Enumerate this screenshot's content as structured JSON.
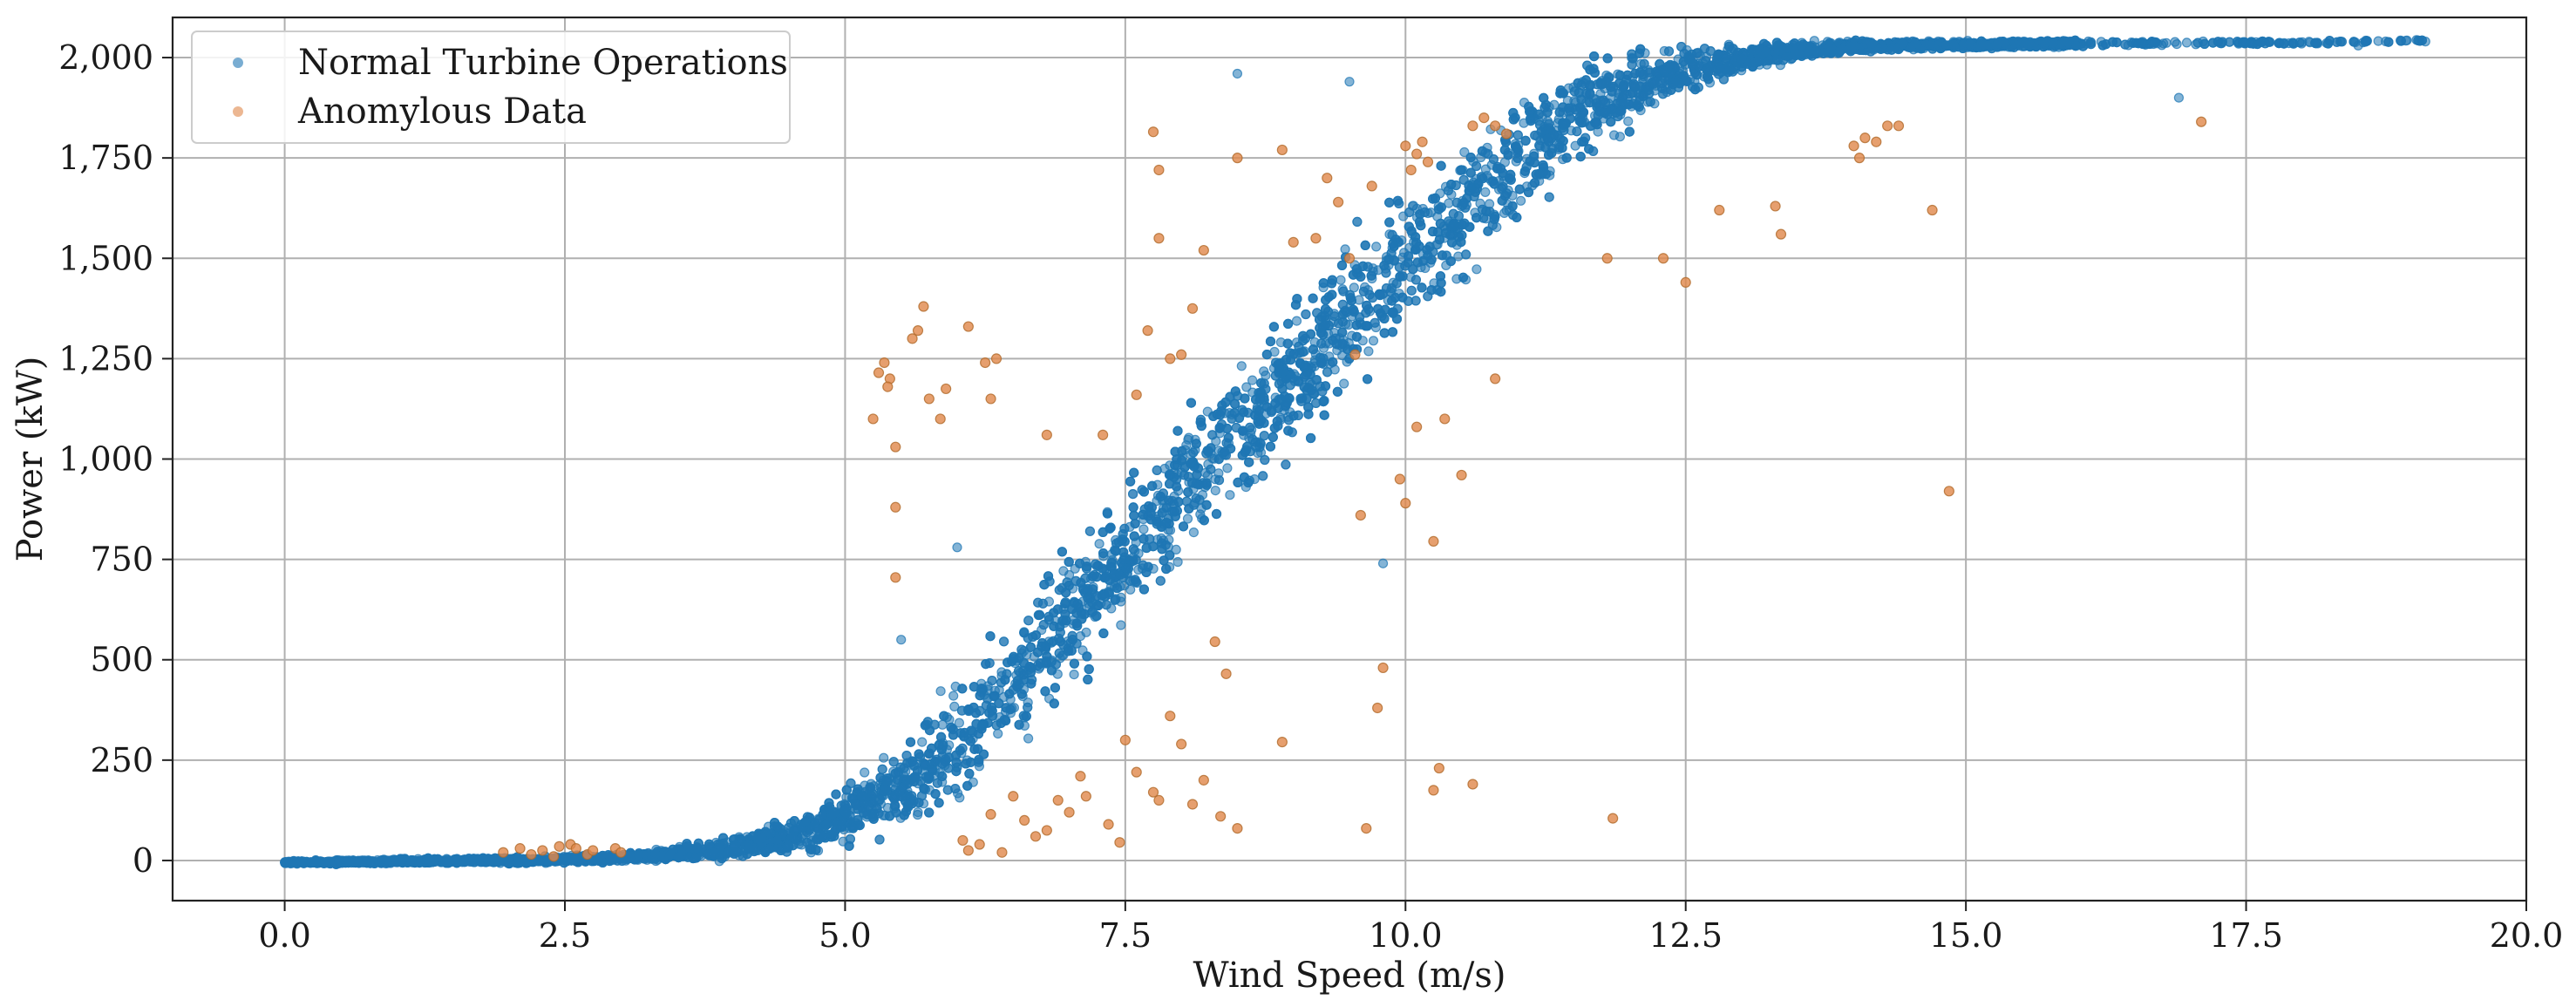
{
  "chart_data": {
    "type": "scatter",
    "title": "",
    "xlabel": "Wind Speed (m/s)",
    "ylabel": "Power (kW)",
    "xlim": [
      -1.0,
      20.0
    ],
    "ylim": [
      -100,
      2100
    ],
    "xticks": [
      0.0,
      2.5,
      5.0,
      7.5,
      10.0,
      12.5,
      15.0,
      17.5,
      20.0
    ],
    "xtick_labels": [
      "0.0",
      "2.5",
      "5.0",
      "7.5",
      "10.0",
      "12.5",
      "15.0",
      "17.5",
      "20.0"
    ],
    "yticks": [
      0,
      250,
      500,
      750,
      1000,
      1250,
      1500,
      1750,
      2000
    ],
    "ytick_labels": [
      "0",
      "250",
      "500",
      "750",
      "1,000",
      "1,250",
      "1,500",
      "1,750",
      "2,000"
    ],
    "grid": true,
    "legend_position": "top-left",
    "series": [
      {
        "name": "Normal Turbine Operations",
        "color": "#1f77b4",
        "band": {
          "x": [
            0.0,
            1.0,
            2.0,
            3.0,
            3.5,
            4.0,
            4.5,
            5.0,
            5.5,
            6.0,
            6.5,
            7.0,
            7.5,
            8.0,
            8.5,
            9.0,
            9.5,
            10.0,
            10.5,
            11.0,
            11.5,
            12.0,
            12.5,
            13.0,
            13.5,
            14.0,
            15.0,
            16.0,
            17.0,
            18.0,
            19.1
          ],
          "low": [
            -10,
            -10,
            -10,
            -8,
            -5,
            -5,
            0,
            10,
            40,
            100,
            230,
            380,
            540,
            700,
            850,
            980,
            1110,
            1250,
            1400,
            1560,
            1700,
            1800,
            1890,
            1950,
            1990,
            2010,
            2020,
            2025,
            2030,
            2030,
            2040
          ],
          "high": [
            0,
            5,
            10,
            20,
            40,
            70,
            120,
            200,
            330,
            480,
            650,
            820,
            980,
            1140,
            1290,
            1440,
            1580,
            1720,
            1840,
            1940,
            2020,
            2045,
            2045,
            2045,
            2045,
            2045,
            2045,
            2045,
            2045,
            2045,
            2045
          ]
        },
        "outliers": [
          {
            "x": 8.5,
            "y": 1960
          },
          {
            "x": 9.5,
            "y": 1940
          },
          {
            "x": 16.9,
            "y": 1900
          },
          {
            "x": 18.5,
            "y": 2030
          },
          {
            "x": 19.1,
            "y": 2040
          },
          {
            "x": 9.8,
            "y": 740
          },
          {
            "x": 5.5,
            "y": 550
          },
          {
            "x": 6.0,
            "y": 780
          }
        ]
      },
      {
        "name": "Anomylous Data",
        "color": "#e0874a",
        "points": [
          {
            "x": 5.3,
            "y": 1215
          },
          {
            "x": 5.35,
            "y": 1240
          },
          {
            "x": 5.4,
            "y": 1200
          },
          {
            "x": 5.38,
            "y": 1180
          },
          {
            "x": 5.6,
            "y": 1300
          },
          {
            "x": 5.65,
            "y": 1320
          },
          {
            "x": 5.7,
            "y": 1380
          },
          {
            "x": 5.75,
            "y": 1150
          },
          {
            "x": 5.9,
            "y": 1175
          },
          {
            "x": 6.1,
            "y": 1330
          },
          {
            "x": 6.25,
            "y": 1240
          },
          {
            "x": 6.35,
            "y": 1250
          },
          {
            "x": 5.25,
            "y": 1100
          },
          {
            "x": 5.45,
            "y": 1030
          },
          {
            "x": 5.45,
            "y": 880
          },
          {
            "x": 5.45,
            "y": 705
          },
          {
            "x": 6.3,
            "y": 1150
          },
          {
            "x": 5.85,
            "y": 1100
          },
          {
            "x": 7.75,
            "y": 1815
          },
          {
            "x": 7.8,
            "y": 1720
          },
          {
            "x": 8.5,
            "y": 1750
          },
          {
            "x": 8.9,
            "y": 1770
          },
          {
            "x": 9.3,
            "y": 1700
          },
          {
            "x": 9.4,
            "y": 1640
          },
          {
            "x": 8.1,
            "y": 1375
          },
          {
            "x": 8.2,
            "y": 1520
          },
          {
            "x": 8.0,
            "y": 1260
          },
          {
            "x": 7.7,
            "y": 1320
          },
          {
            "x": 7.6,
            "y": 1160
          },
          {
            "x": 7.3,
            "y": 1060
          },
          {
            "x": 6.8,
            "y": 1060
          },
          {
            "x": 7.9,
            "y": 1250
          },
          {
            "x": 7.8,
            "y": 1550
          },
          {
            "x": 9.2,
            "y": 1550
          },
          {
            "x": 9.0,
            "y": 1540
          },
          {
            "x": 9.7,
            "y": 1680
          },
          {
            "x": 10.0,
            "y": 1780
          },
          {
            "x": 10.1,
            "y": 1760
          },
          {
            "x": 10.2,
            "y": 1740
          },
          {
            "x": 10.05,
            "y": 1720
          },
          {
            "x": 10.15,
            "y": 1790
          },
          {
            "x": 10.6,
            "y": 1830
          },
          {
            "x": 10.8,
            "y": 1830
          },
          {
            "x": 10.7,
            "y": 1850
          },
          {
            "x": 10.9,
            "y": 1810
          },
          {
            "x": 9.5,
            "y": 1500
          },
          {
            "x": 9.55,
            "y": 1260
          },
          {
            "x": 10.1,
            "y": 1080
          },
          {
            "x": 10.35,
            "y": 1100
          },
          {
            "x": 9.95,
            "y": 950
          },
          {
            "x": 10.0,
            "y": 890
          },
          {
            "x": 10.5,
            "y": 960
          },
          {
            "x": 9.6,
            "y": 860
          },
          {
            "x": 10.25,
            "y": 795
          },
          {
            "x": 10.8,
            "y": 1200
          },
          {
            "x": 11.8,
            "y": 1500
          },
          {
            "x": 12.3,
            "y": 1500
          },
          {
            "x": 12.5,
            "y": 1440
          },
          {
            "x": 12.8,
            "y": 1620
          },
          {
            "x": 13.3,
            "y": 1630
          },
          {
            "x": 13.35,
            "y": 1560
          },
          {
            "x": 14.0,
            "y": 1780
          },
          {
            "x": 14.05,
            "y": 1750
          },
          {
            "x": 14.1,
            "y": 1800
          },
          {
            "x": 14.3,
            "y": 1830
          },
          {
            "x": 14.4,
            "y": 1830
          },
          {
            "x": 14.2,
            "y": 1790
          },
          {
            "x": 14.7,
            "y": 1620
          },
          {
            "x": 17.1,
            "y": 1840
          },
          {
            "x": 14.85,
            "y": 920
          },
          {
            "x": 11.85,
            "y": 105
          },
          {
            "x": 9.8,
            "y": 480
          },
          {
            "x": 9.75,
            "y": 380
          },
          {
            "x": 8.9,
            "y": 295
          },
          {
            "x": 8.4,
            "y": 465
          },
          {
            "x": 8.3,
            "y": 545
          },
          {
            "x": 9.65,
            "y": 80
          },
          {
            "x": 10.3,
            "y": 230
          },
          {
            "x": 10.25,
            "y": 175
          },
          {
            "x": 10.6,
            "y": 190
          },
          {
            "x": 8.1,
            "y": 140
          },
          {
            "x": 7.8,
            "y": 150
          },
          {
            "x": 7.75,
            "y": 170
          },
          {
            "x": 8.35,
            "y": 110
          },
          {
            "x": 8.5,
            "y": 80
          },
          {
            "x": 8.2,
            "y": 200
          },
          {
            "x": 8.0,
            "y": 290
          },
          {
            "x": 7.5,
            "y": 300
          },
          {
            "x": 7.6,
            "y": 220
          },
          {
            "x": 7.9,
            "y": 360
          },
          {
            "x": 7.15,
            "y": 160
          },
          {
            "x": 7.0,
            "y": 120
          },
          {
            "x": 6.8,
            "y": 75
          },
          {
            "x": 6.7,
            "y": 60
          },
          {
            "x": 6.5,
            "y": 160
          },
          {
            "x": 6.3,
            "y": 115
          },
          {
            "x": 6.2,
            "y": 40
          },
          {
            "x": 6.4,
            "y": 20
          },
          {
            "x": 6.1,
            "y": 25
          },
          {
            "x": 6.05,
            "y": 50
          },
          {
            "x": 6.6,
            "y": 100
          },
          {
            "x": 7.35,
            "y": 90
          },
          {
            "x": 7.1,
            "y": 210
          },
          {
            "x": 6.9,
            "y": 150
          },
          {
            "x": 7.45,
            "y": 45
          },
          {
            "x": 1.95,
            "y": 20
          },
          {
            "x": 2.1,
            "y": 30
          },
          {
            "x": 2.3,
            "y": 25
          },
          {
            "x": 2.45,
            "y": 35
          },
          {
            "x": 2.55,
            "y": 40
          },
          {
            "x": 2.6,
            "y": 30
          },
          {
            "x": 2.7,
            "y": 15
          },
          {
            "x": 2.75,
            "y": 25
          },
          {
            "x": 2.95,
            "y": 30
          },
          {
            "x": 3.0,
            "y": 20
          },
          {
            "x": 2.4,
            "y": 10
          },
          {
            "x": 2.2,
            "y": 15
          }
        ]
      }
    ]
  }
}
